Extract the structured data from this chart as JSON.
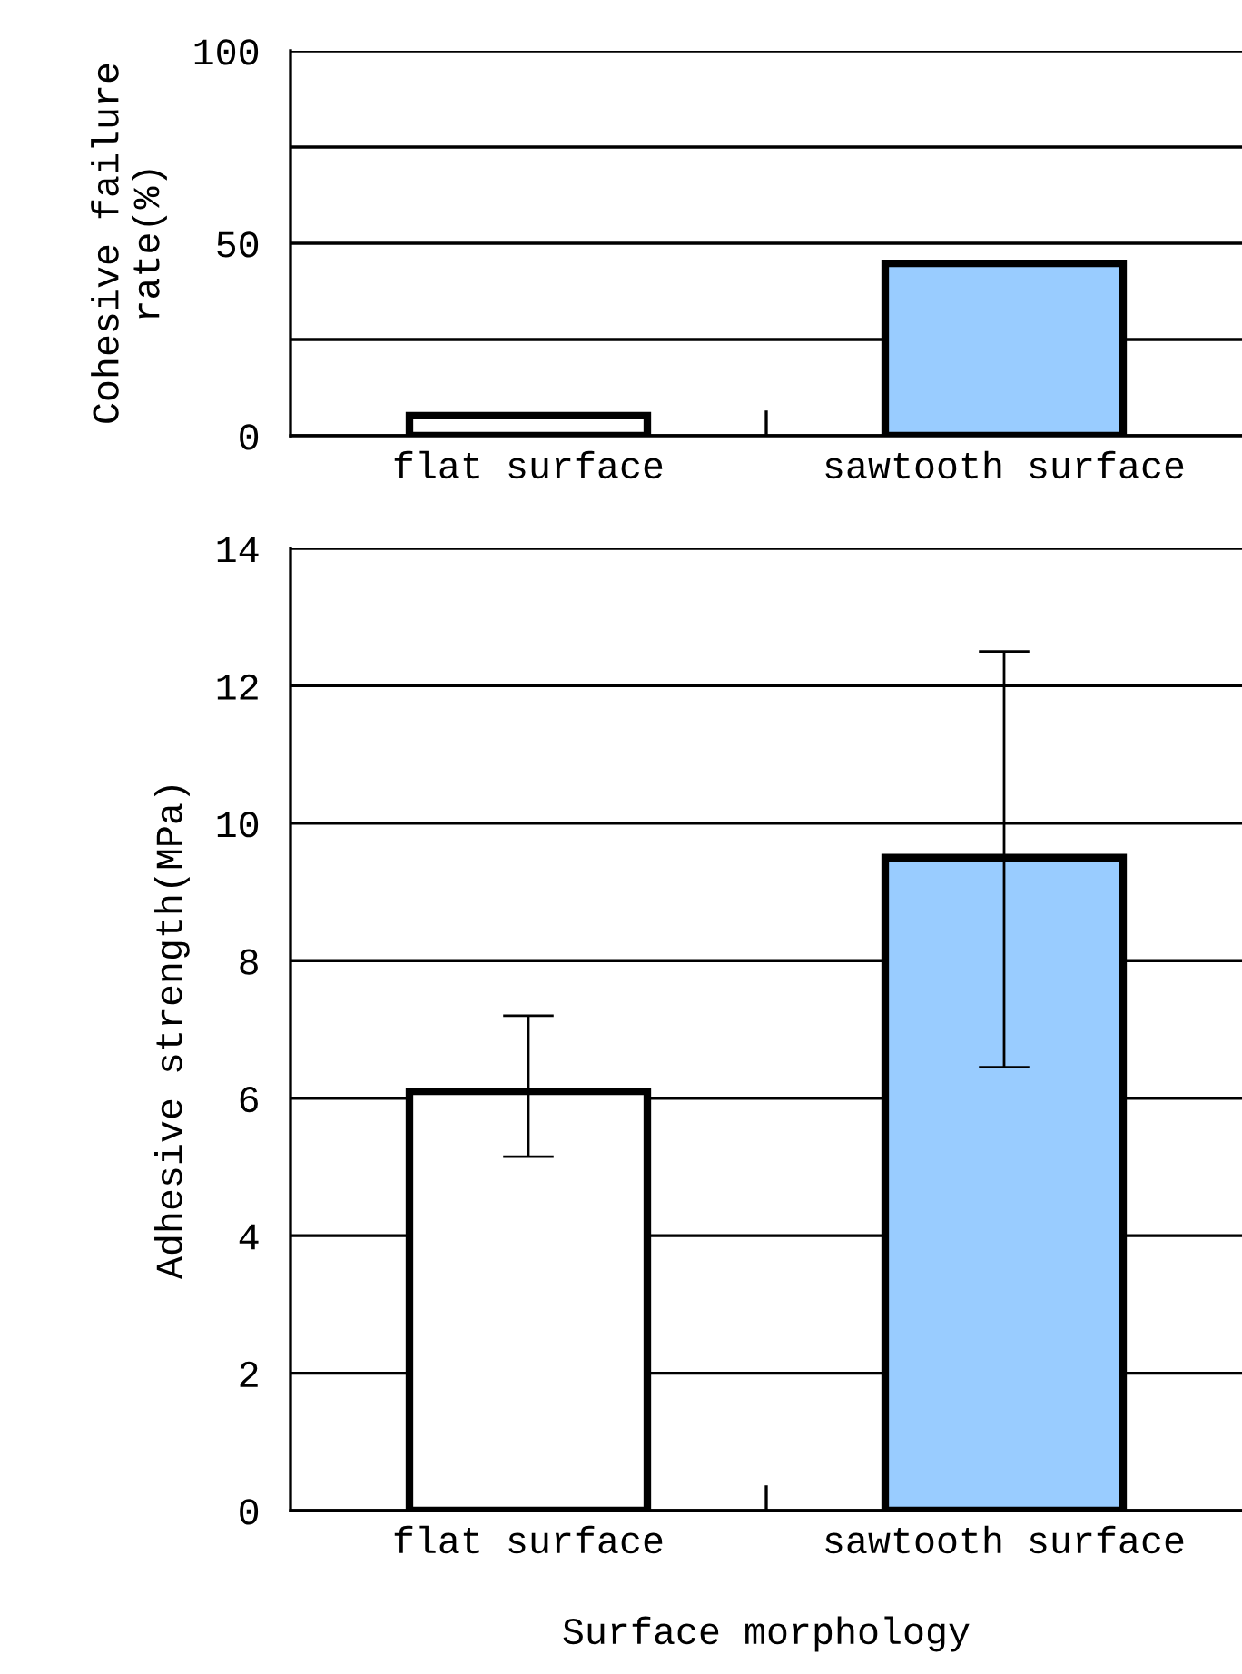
{
  "chart_data": [
    {
      "type": "bar",
      "ylabel": "Cohesive failure\nrate(%)",
      "categories": [
        "flat surface",
        "sawtooth surface"
      ],
      "values": [
        5.2,
        44.8
      ],
      "colors": [
        "#ffffff",
        "#99ccff"
      ],
      "ylim": [
        0,
        100
      ],
      "yticks": [
        0,
        {
          "value": 25,
          "label": null
        },
        50,
        {
          "value": 75,
          "label": null
        },
        100
      ],
      "grid": "y"
    },
    {
      "type": "bar",
      "ylabel": "Adhesive strength(MPa)",
      "xlabel": "Surface morphology",
      "categories": [
        "flat surface",
        "sawtooth surface"
      ],
      "values": [
        6.1,
        9.5
      ],
      "colors": [
        "#ffffff",
        "#99ccff"
      ],
      "errors": [
        [
          5.15,
          7.2
        ],
        [
          6.45,
          12.5
        ]
      ],
      "ylim": [
        0,
        14
      ],
      "yticks": [
        0,
        2,
        4,
        6,
        8,
        10,
        12,
        14
      ],
      "grid": "y"
    }
  ]
}
